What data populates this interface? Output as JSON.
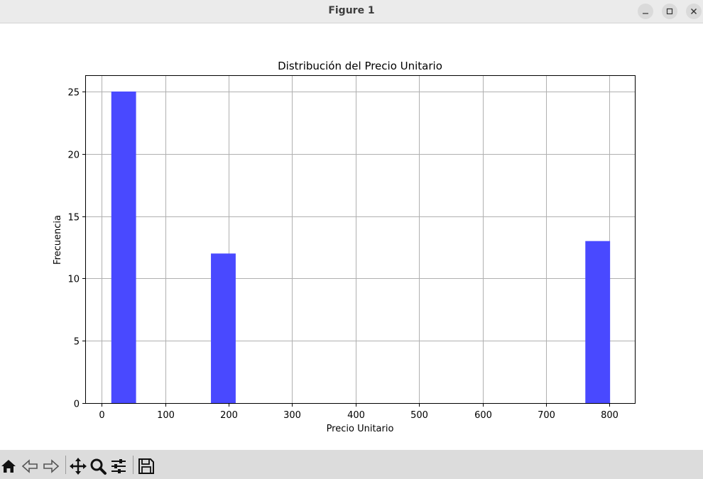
{
  "window": {
    "title": "Figure 1",
    "buttons": [
      "minimize",
      "maximize",
      "close"
    ]
  },
  "toolbar": {
    "tools": [
      {
        "name": "home",
        "icon": "home-icon"
      },
      {
        "name": "back",
        "icon": "back-arrow-icon"
      },
      {
        "name": "forward",
        "icon": "forward-arrow-icon"
      },
      {
        "name": "pan",
        "icon": "move-icon"
      },
      {
        "name": "zoom",
        "icon": "zoom-icon"
      },
      {
        "name": "configure-subplots",
        "icon": "sliders-icon"
      },
      {
        "name": "save",
        "icon": "save-icon"
      }
    ]
  },
  "chart_data": {
    "type": "bar",
    "title": "Distribución del Precio Unitario",
    "xlabel": "Precio Unitario",
    "ylabel": "Frecuencia",
    "xlim": [
      -25,
      840
    ],
    "ylim": [
      0,
      26.25
    ],
    "xticks": [
      0,
      100,
      200,
      300,
      400,
      500,
      600,
      700,
      800
    ],
    "yticks": [
      0,
      5,
      10,
      15,
      20,
      25
    ],
    "grid": true,
    "bar_color": "#4949ff",
    "bins": [
      {
        "x0": 15,
        "x1": 54,
        "count": 25
      },
      {
        "x0": 172,
        "x1": 211,
        "count": 12
      },
      {
        "x0": 762,
        "x1": 801,
        "count": 13
      }
    ]
  }
}
